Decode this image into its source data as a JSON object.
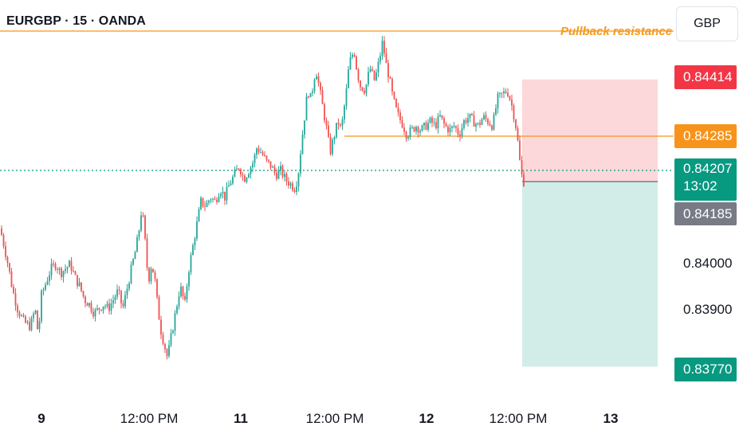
{
  "header": {
    "symbol_title": "EURGBP · 15 · OANDA",
    "currency_button": "GBP"
  },
  "annotations": {
    "pullback_label": "Pullback resistance"
  },
  "price_tags": {
    "stop_loss": "0.84414",
    "resistance": "0.84285",
    "current_price": "0.84207",
    "countdown": "13:02",
    "entry": "0.84185",
    "take_profit": "0.83770"
  },
  "colors": {
    "up": "#26a69a",
    "down": "#ef5350",
    "stop_loss_tag": "#f23645",
    "resistance_tag": "#f7931a",
    "current_tag": "#089981",
    "entry_tag": "#787b86",
    "take_profit_tag": "#089981",
    "risk_zone": "#fcd8da",
    "reward_zone": "#d2ede8"
  },
  "chart_data": {
    "type": "candlestick",
    "symbol": "EURGBP",
    "timeframe": "15",
    "source": "OANDA",
    "y_axis_ticks": [
      "0.84000",
      "0.83900"
    ],
    "ylim": [
      0.8373,
      0.845
    ],
    "x_axis_labels": [
      "9",
      "12:00 PM",
      "11",
      "12:00 PM",
      "12",
      "12:00 PM",
      "13"
    ],
    "x_axis_bold": [
      true,
      false,
      true,
      false,
      true,
      false,
      true
    ],
    "horizontal_lines": [
      {
        "name": "Pullback resistance",
        "price": 0.8449,
        "style": "solid"
      },
      {
        "name": "resistance",
        "price": 0.84285,
        "style": "solid"
      },
      {
        "name": "current price",
        "price": 0.84207,
        "style": "dotted"
      }
    ],
    "position_tool": {
      "entry": 0.84185,
      "stop_loss": 0.84414,
      "take_profit": 0.8377
    },
    "last_price": 0.84207,
    "candles_close_path": [
      [
        0,
        0.8408
      ],
      [
        4,
        0.8405
      ],
      [
        10,
        0.84
      ],
      [
        16,
        0.8394
      ],
      [
        22,
        0.839
      ],
      [
        30,
        0.8387
      ],
      [
        38,
        0.8386
      ],
      [
        44,
        0.839
      ],
      [
        48,
        0.8384
      ],
      [
        52,
        0.8393
      ],
      [
        58,
        0.8396
      ],
      [
        64,
        0.8399
      ],
      [
        70,
        0.84
      ],
      [
        76,
        0.8398
      ],
      [
        82,
        0.8399
      ],
      [
        88,
        0.84
      ],
      [
        94,
        0.8397
      ],
      [
        100,
        0.8395
      ],
      [
        106,
        0.8392
      ],
      [
        112,
        0.8391
      ],
      [
        118,
        0.8389
      ],
      [
        124,
        0.839
      ],
      [
        130,
        0.8391
      ],
      [
        136,
        0.839
      ],
      [
        142,
        0.8392
      ],
      [
        148,
        0.8394
      ],
      [
        154,
        0.839
      ],
      [
        160,
        0.8395
      ],
      [
        166,
        0.84
      ],
      [
        170,
        0.8403
      ],
      [
        174,
        0.8407
      ],
      [
        178,
        0.8413
      ],
      [
        182,
        0.8405
      ],
      [
        186,
        0.8396
      ],
      [
        190,
        0.84
      ],
      [
        194,
        0.8397
      ],
      [
        198,
        0.839
      ],
      [
        202,
        0.8385
      ],
      [
        206,
        0.8382
      ],
      [
        210,
        0.8379
      ],
      [
        214,
        0.8383
      ],
      [
        220,
        0.8389
      ],
      [
        226,
        0.8395
      ],
      [
        232,
        0.8391
      ],
      [
        236,
        0.8398
      ],
      [
        240,
        0.8402
      ],
      [
        244,
        0.8406
      ],
      [
        248,
        0.841
      ],
      [
        252,
        0.8414
      ],
      [
        258,
        0.8413
      ],
      [
        264,
        0.8415
      ],
      [
        270,
        0.8414
      ],
      [
        276,
        0.8417
      ],
      [
        282,
        0.8415
      ],
      [
        288,
        0.8418
      ],
      [
        294,
        0.842
      ],
      [
        300,
        0.8422
      ],
      [
        306,
        0.8419
      ],
      [
        312,
        0.8421
      ],
      [
        318,
        0.8423
      ],
      [
        322,
        0.8426
      ],
      [
        328,
        0.8425
      ],
      [
        334,
        0.8423
      ],
      [
        340,
        0.8422
      ],
      [
        346,
        0.842
      ],
      [
        352,
        0.8421
      ],
      [
        358,
        0.8419
      ],
      [
        364,
        0.8418
      ],
      [
        370,
        0.8417
      ],
      [
        374,
        0.842
      ],
      [
        378,
        0.8427
      ],
      [
        382,
        0.8433
      ],
      [
        386,
        0.8439
      ],
      [
        390,
        0.8437
      ],
      [
        396,
        0.8444
      ],
      [
        400,
        0.844
      ],
      [
        404,
        0.8436
      ],
      [
        410,
        0.843
      ],
      [
        414,
        0.8425
      ],
      [
        418,
        0.8428
      ],
      [
        424,
        0.8432
      ],
      [
        428,
        0.843
      ],
      [
        434,
        0.8438
      ],
      [
        438,
        0.8445
      ],
      [
        444,
        0.8448
      ],
      [
        448,
        0.8443
      ],
      [
        452,
        0.844
      ],
      [
        458,
        0.8439
      ],
      [
        464,
        0.8444
      ],
      [
        470,
        0.8441
      ],
      [
        476,
        0.8446
      ],
      [
        480,
        0.845
      ],
      [
        484,
        0.8445
      ],
      [
        488,
        0.8442
      ],
      [
        492,
        0.8438
      ],
      [
        496,
        0.8435
      ],
      [
        500,
        0.8433
      ],
      [
        506,
        0.8431
      ],
      [
        510,
        0.8429
      ],
      [
        516,
        0.843
      ],
      [
        522,
        0.8431
      ],
      [
        528,
        0.843
      ],
      [
        534,
        0.8431
      ],
      [
        540,
        0.8432
      ],
      [
        546,
        0.8431
      ],
      [
        552,
        0.8433
      ],
      [
        558,
        0.8431
      ],
      [
        564,
        0.843
      ],
      [
        570,
        0.8431
      ],
      [
        576,
        0.8429
      ],
      [
        582,
        0.8432
      ],
      [
        588,
        0.8433
      ],
      [
        594,
        0.8432
      ],
      [
        600,
        0.8431
      ],
      [
        606,
        0.8433
      ],
      [
        612,
        0.8432
      ],
      [
        618,
        0.8431
      ],
      [
        624,
        0.8437
      ],
      [
        630,
        0.8438
      ],
      [
        636,
        0.8439
      ],
      [
        640,
        0.8437
      ],
      [
        644,
        0.8434
      ],
      [
        648,
        0.843
      ],
      [
        652,
        0.8423
      ],
      [
        656,
        0.8418
      ],
      [
        660,
        0.842
      ]
    ]
  }
}
